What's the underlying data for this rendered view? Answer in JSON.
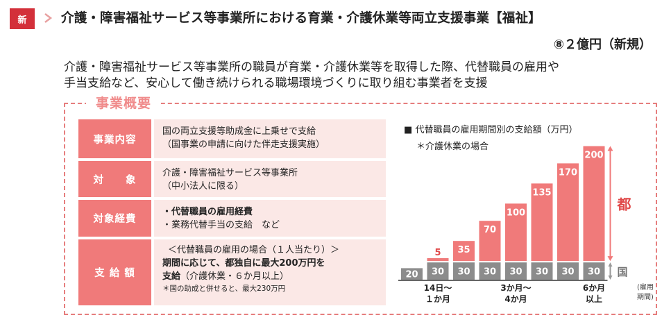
{
  "header": {
    "badge": "新",
    "title": "介護・障害福祉サービス等事業所における育業・介護休業等両立支援事業【福祉】",
    "budget": "⑧２億円（新規）",
    "lead_line1": "介護・障害福祉サービス等事業所の職員が育業・介護休業等を取得した際、代替職員の雇用や",
    "lead_line2": "手当支給など、安心して働き続けられる職場環境づくりに取り組む事業者を支援"
  },
  "outline": {
    "label": "事業概要",
    "rows": [
      {
        "head": "事業内容",
        "lines": [
          "国の両立支援等助成金に上乗せで支給",
          "（国事業の申請に向けた伴走支援実施）"
        ]
      },
      {
        "head": "対　　象",
        "lines": [
          "介護・障害福祉サービス等事業所",
          "（中小法人に限る）"
        ]
      },
      {
        "head": "対象経費",
        "lines": [
          "・代替職員の雇用経費",
          "・業務代替手当の支給　など"
        ]
      },
      {
        "head": "支 給 額",
        "lines": [
          "＜代替職員の雇用の場合（１人当たり）＞",
          "期間に応じて、都独自に最大200万円を",
          "支給（介護休業・６か月以上）",
          "＊国の助成と併せると、最大230万円"
        ]
      }
    ],
    "row4": {
      "line2a": "期間に応じて、都独自に",
      "line2b": "最大200万円を",
      "line3a": "支給",
      "line3b": "（介護休業・６か月以上）"
    }
  },
  "chart_data": {
    "type": "bar",
    "title": "代替職員の雇用期間別の支給額（万円）",
    "subtitle": "＊介護休業の場合",
    "bullet": "■",
    "series": [
      {
        "name": "国",
        "values": [
          20,
          30,
          30,
          30,
          30,
          30,
          30,
          30
        ]
      },
      {
        "name": "都",
        "values": [
          0,
          5,
          35,
          70,
          100,
          135,
          170,
          200
        ]
      }
    ],
    "x_labels": [
      {
        "bar_index": 1,
        "lines": [
          "14日〜",
          "１か月"
        ]
      },
      {
        "bar_index": 4,
        "lines": [
          "3か月〜",
          "4か月"
        ]
      },
      {
        "bar_index": 7,
        "lines": [
          "6か月",
          "以上"
        ]
      }
    ],
    "x_unit": [
      "(雇用",
      "期間)"
    ],
    "colors": {
      "kuni": "#8c8c8c",
      "to": "#f07a7a",
      "to_label": "#e04a4a"
    }
  }
}
